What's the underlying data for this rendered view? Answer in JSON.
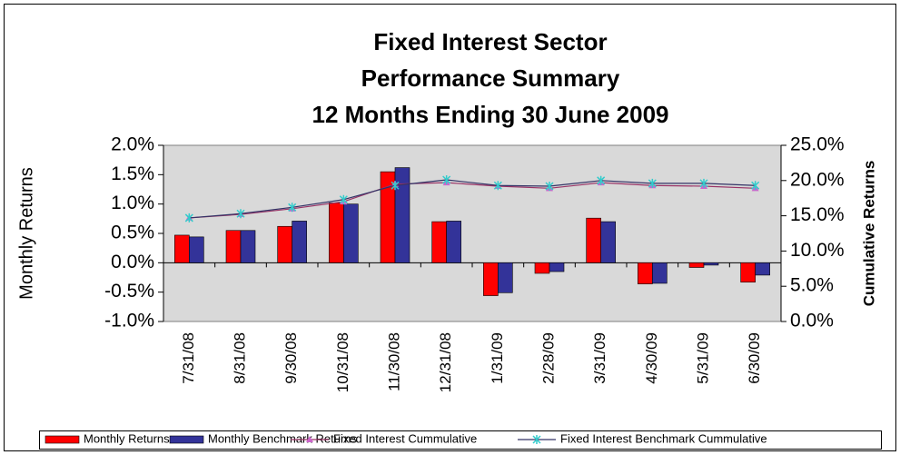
{
  "chart_data": {
    "type": "bar_line",
    "title": [
      "Fixed Interest Sector",
      "Performance Summary",
      "12 Months Ending 30 June 2009"
    ],
    "categories": [
      "7/31/08",
      "8/31/08",
      "9/30/08",
      "10/31/08",
      "11/30/08",
      "12/31/08",
      "1/31/09",
      "2/28/09",
      "3/31/09",
      "4/30/09",
      "5/31/09",
      "6/30/09"
    ],
    "y_label": "Monthly Returns",
    "y2_label": "Cumulative Returns",
    "series": [
      {
        "name": "Monthly Returns",
        "kind": "bar",
        "color": "#ff0000",
        "values": [
          0.47,
          0.55,
          0.62,
          1.02,
          1.55,
          0.7,
          -0.56,
          -0.18,
          0.76,
          -0.36,
          -0.08,
          -0.33
        ]
      },
      {
        "name": "Monthly Benchmark Returns",
        "kind": "bar",
        "color": "#333399",
        "values": [
          0.44,
          0.55,
          0.71,
          1.0,
          1.62,
          0.71,
          -0.51,
          -0.15,
          0.7,
          -0.35,
          -0.04,
          -0.21
        ]
      },
      {
        "name": "Fixed Interest Cummulative",
        "kind": "line",
        "axis": "y2",
        "color": "#993366",
        "marker": "triangle",
        "marker_color": "#cc66cc",
        "values": [
          14.7,
          15.2,
          16.0,
          17.0,
          19.5,
          19.7,
          19.2,
          18.9,
          19.7,
          19.3,
          19.2,
          18.9
        ]
      },
      {
        "name": "Fixed Interest Benchmark Cummulative",
        "kind": "line",
        "axis": "y2",
        "color": "#333366",
        "marker": "x",
        "marker_color": "#33cccc",
        "values": [
          14.7,
          15.3,
          16.2,
          17.3,
          19.3,
          20.1,
          19.3,
          19.2,
          20.0,
          19.6,
          19.6,
          19.3
        ]
      }
    ],
    "ylim": [
      -1.0,
      2.0
    ],
    "yticks": [
      {
        "value": -1.0,
        "label": "-1.0%"
      },
      {
        "value": -0.5,
        "label": "-0.5%"
      },
      {
        "value": 0.0,
        "label": "0.0%"
      },
      {
        "value": 0.5,
        "label": "0.5%"
      },
      {
        "value": 1.0,
        "label": "1.0%"
      },
      {
        "value": 1.5,
        "label": "1.5%"
      },
      {
        "value": 2.0,
        "label": "2.0%"
      }
    ],
    "y2lim": [
      0,
      25
    ],
    "y2ticks": [
      {
        "value": 0,
        "label": "0.0%"
      },
      {
        "value": 5,
        "label": "5.0%"
      },
      {
        "value": 10,
        "label": "10.0%"
      },
      {
        "value": 15,
        "label": "15.0%"
      },
      {
        "value": 20,
        "label": "20.0%"
      },
      {
        "value": 25,
        "label": "25.0%"
      }
    ],
    "legend": "bottom"
  }
}
